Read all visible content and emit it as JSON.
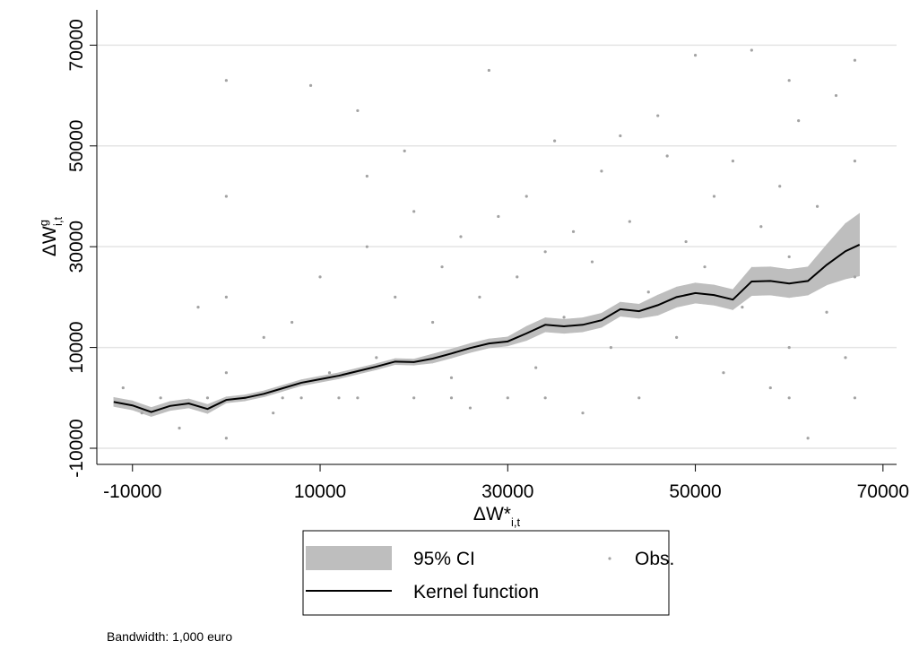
{
  "chart_data": {
    "type": "kernel_scatter",
    "x_label": {
      "base": "ΔW*",
      "sub": "i,t"
    },
    "y_label": {
      "base": "ΔW",
      "sup": "g",
      "sub": "i,t"
    },
    "xlim": [
      -13800,
      71450
    ],
    "ylim": [
      -13200,
      77000
    ],
    "xticks": [
      -10000,
      10000,
      30000,
      50000,
      70000
    ],
    "yticks": [
      -10000,
      10000,
      30000,
      50000,
      70000
    ],
    "grid": true,
    "legend": "bottom",
    "note": "Bandwidth: 1,000 euro",
    "series": [
      {
        "name": "95% CI",
        "color": "#bebebe",
        "x": [
          -12000,
          -10000,
          -8000,
          -6000,
          -4000,
          -2000,
          0,
          2000,
          4000,
          6000,
          8000,
          10000,
          12000,
          14000,
          16000,
          18000,
          20000,
          22000,
          24000,
          26000,
          28000,
          30000,
          32000,
          34000,
          36000,
          38000,
          40000,
          42000,
          44000,
          46000,
          48000,
          50000,
          52000,
          54000,
          56000,
          58000,
          60000,
          62000,
          64000,
          66000,
          67500
        ],
        "lower": [
          -1700,
          -2400,
          -3700,
          -2500,
          -2000,
          -3100,
          -1000,
          -600,
          200,
          1300,
          2400,
          3100,
          3800,
          4700,
          5600,
          6600,
          6500,
          6900,
          7900,
          9000,
          9900,
          10300,
          11400,
          13100,
          12800,
          13100,
          14000,
          16200,
          15800,
          16400,
          18000,
          18800,
          18400,
          17500,
          20300,
          20400,
          19900,
          20400,
          22400,
          23600,
          24200
        ],
        "upper": [
          100,
          -600,
          -1900,
          -700,
          -200,
          -1300,
          200,
          600,
          1400,
          2500,
          3600,
          4300,
          5000,
          5900,
          6800,
          7800,
          7700,
          8700,
          9700,
          10800,
          11700,
          12100,
          14200,
          15900,
          15600,
          15900,
          16800,
          19000,
          18600,
          20400,
          22000,
          22800,
          22400,
          21500,
          25900,
          26000,
          25500,
          26000,
          30400,
          34600,
          36600
        ]
      },
      {
        "name": "Obs.",
        "color": "#a3a3a3",
        "x": [
          -11000,
          -9000,
          -7000,
          -5000,
          -3000,
          0,
          0,
          0,
          0,
          0,
          2000,
          4000,
          5000,
          7000,
          8000,
          9000,
          10000,
          11000,
          12000,
          14000,
          15000,
          15000,
          16000,
          18000,
          19000,
          20000,
          20000,
          22000,
          23000,
          24000,
          25000,
          26000,
          27000,
          28000,
          29000,
          30000,
          31000,
          32000,
          33000,
          34000,
          35000,
          36000,
          37000,
          38000,
          39000,
          40000,
          41000,
          42000,
          43000,
          44000,
          45000,
          46000,
          47000,
          48000,
          49000,
          50000,
          51000,
          52000,
          53000,
          54000,
          55000,
          56000,
          57000,
          58000,
          59000,
          60000,
          60000,
          60000,
          60000,
          61000,
          62000,
          63000,
          64000,
          65000,
          66000,
          67000,
          67000,
          67000,
          67000,
          -2000,
          6000,
          14000,
          24000,
          34000
        ],
        "values": [
          2000,
          -3000,
          0,
          -6000,
          18000,
          63000,
          40000,
          -8000,
          20000,
          5000,
          0,
          12000,
          -3000,
          15000,
          0,
          62000,
          24000,
          5000,
          0,
          57000,
          44000,
          30000,
          8000,
          20000,
          49000,
          37000,
          0,
          15000,
          26000,
          4000,
          32000,
          -2000,
          20000,
          65000,
          36000,
          0,
          24000,
          40000,
          6000,
          29000,
          51000,
          16000,
          33000,
          -3000,
          27000,
          45000,
          10000,
          52000,
          35000,
          0,
          21000,
          56000,
          48000,
          12000,
          31000,
          68000,
          26000,
          40000,
          5000,
          47000,
          18000,
          69000,
          34000,
          2000,
          42000,
          63000,
          28000,
          10000,
          0,
          55000,
          -8000,
          38000,
          17000,
          60000,
          8000,
          67000,
          47000,
          24000,
          0,
          0,
          0,
          0,
          0,
          0
        ]
      },
      {
        "name": "Kernel function",
        "color": "#000000",
        "x": [
          -12000,
          -10000,
          -8000,
          -6000,
          -4000,
          -2000,
          0,
          2000,
          4000,
          6000,
          8000,
          10000,
          12000,
          14000,
          16000,
          18000,
          20000,
          22000,
          24000,
          26000,
          28000,
          30000,
          32000,
          34000,
          36000,
          38000,
          40000,
          42000,
          44000,
          46000,
          48000,
          50000,
          52000,
          54000,
          56000,
          58000,
          60000,
          62000,
          64000,
          66000,
          67500
        ],
        "values": [
          -800,
          -1500,
          -2800,
          -1600,
          -1100,
          -2200,
          -400,
          0,
          800,
          1900,
          3000,
          3700,
          4400,
          5300,
          6200,
          7200,
          7100,
          7800,
          8800,
          9900,
          10800,
          11200,
          12800,
          14500,
          14200,
          14500,
          15400,
          17600,
          17200,
          18400,
          20000,
          20800,
          20400,
          19500,
          23100,
          23200,
          22700,
          23200,
          26400,
          29100,
          30400
        ]
      }
    ]
  }
}
